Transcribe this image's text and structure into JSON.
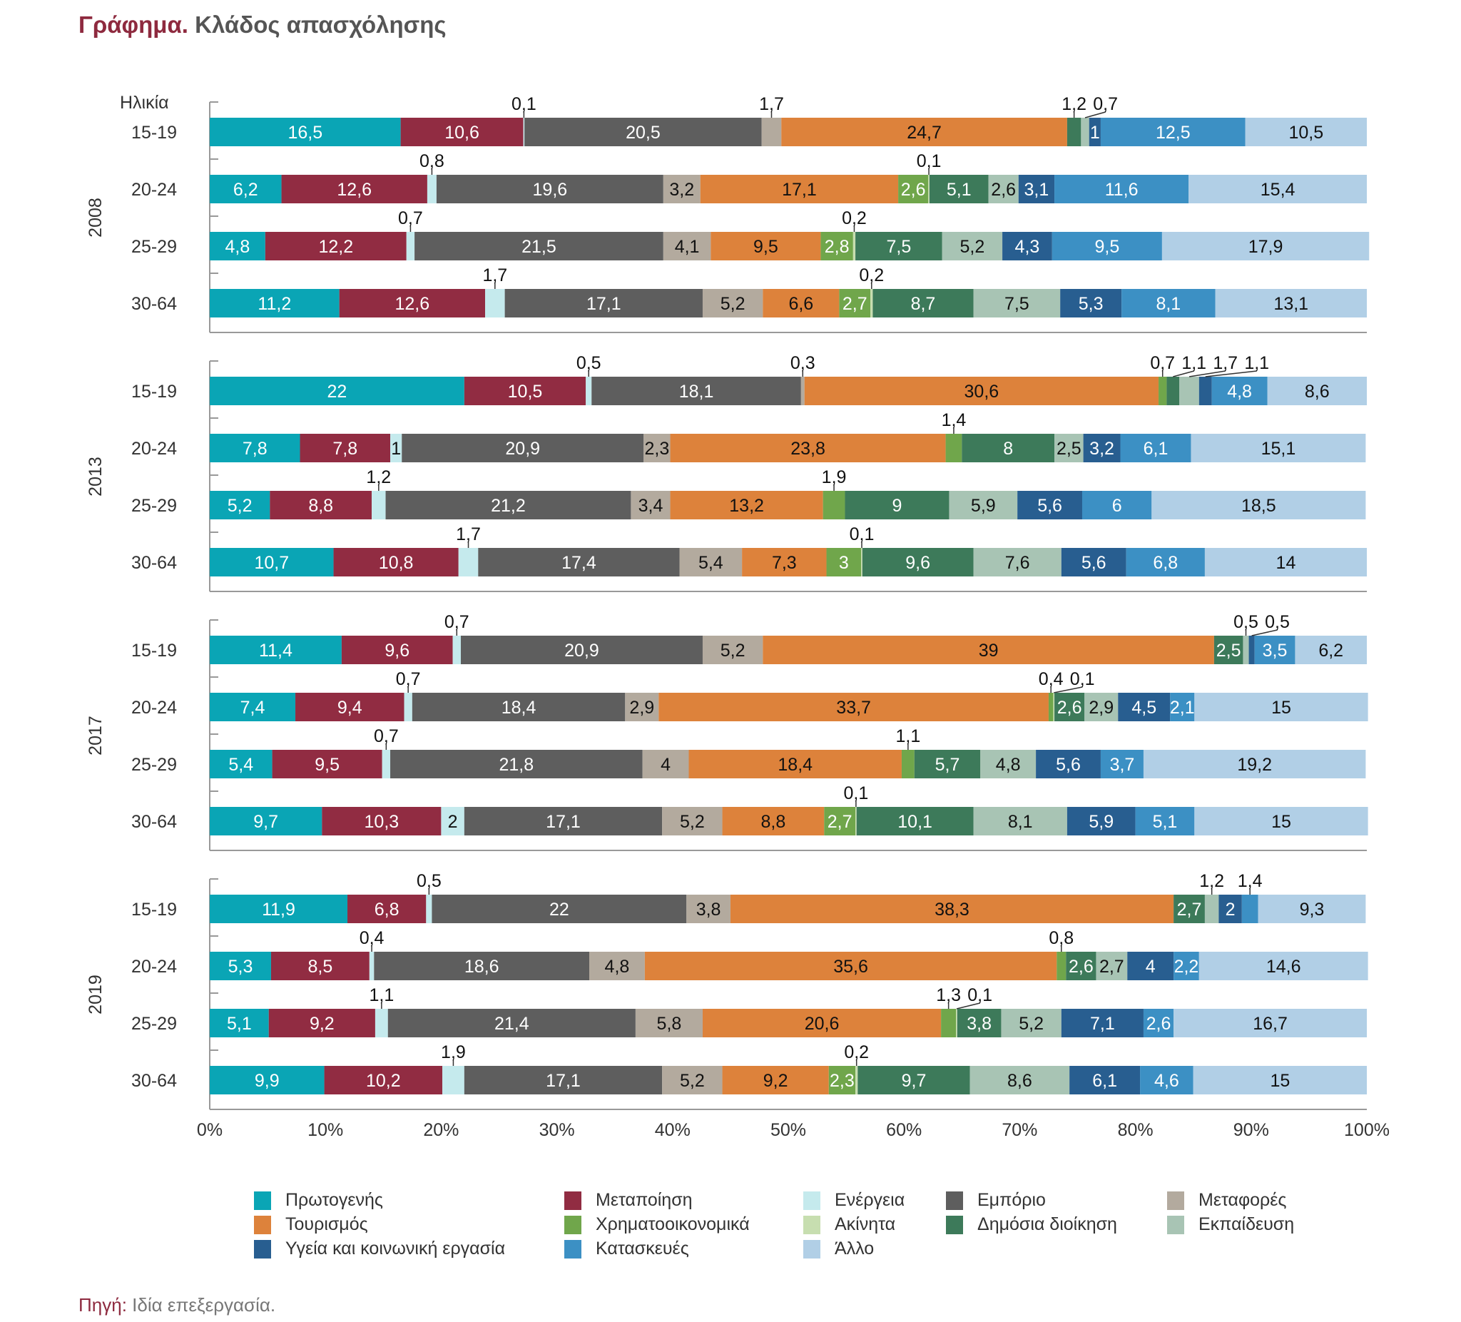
{
  "title": {
    "lead": "Γράφημα.",
    "text": "Κλάδος απασχόλησης"
  },
  "source": {
    "lead": "Πηγή:",
    "text": "Ιδία επεξεργασία."
  },
  "chart_data": {
    "type": "bar",
    "orientation": "horizontal",
    "stacked": "percent",
    "age_label": "Ηλικία",
    "xlim": [
      0,
      100
    ],
    "x_ticks": [
      "0%",
      "10%",
      "20%",
      "30%",
      "40%",
      "50%",
      "60%",
      "70%",
      "80%",
      "90%",
      "100%"
    ],
    "legend_position": "bottom",
    "series": [
      {
        "name": "Πρωτογενής",
        "color": "#0aa5b5"
      },
      {
        "name": "Μεταποίηση",
        "color": "#912c42"
      },
      {
        "name": "Ενέργεια",
        "color": "#c5eaed"
      },
      {
        "name": "Εμπόριο",
        "color": "#5e5e5e"
      },
      {
        "name": "Μεταφορές",
        "color": "#b3aa9e"
      },
      {
        "name": "Τουρισμός",
        "color": "#dd823b"
      },
      {
        "name": "Χρηματοοικονομικά",
        "color": "#70a64b"
      },
      {
        "name": "Ακίνητα",
        "color": "#c7deb0"
      },
      {
        "name": "Δημόσια διοίκηση",
        "color": "#3d7a5a"
      },
      {
        "name": "Εκπαίδευση",
        "color": "#a8c4b4"
      },
      {
        "name": "Υγεία και κοινωνική εργασία",
        "color": "#285e90"
      },
      {
        "name": "Κατασκευές",
        "color": "#3c90c4"
      },
      {
        "name": "Άλλο",
        "color": "#b1cfe6"
      }
    ],
    "groups": [
      {
        "year": "2008",
        "rows": [
          {
            "age": "15-19",
            "values": [
              16.5,
              10.6,
              0.1,
              20.5,
              1.7,
              24.7,
              0,
              0,
              1.2,
              0.7,
              1,
              12.5,
              10.5
            ]
          },
          {
            "age": "20-24",
            "values": [
              6.2,
              12.6,
              0.8,
              19.6,
              3.2,
              17.1,
              2.6,
              0.1,
              5.1,
              2.6,
              3.1,
              11.6,
              15.4
            ]
          },
          {
            "age": "25-29",
            "values": [
              4.8,
              12.2,
              0.7,
              21.5,
              4.1,
              9.5,
              2.8,
              0.2,
              7.5,
              5.2,
              4.3,
              9.5,
              17.9
            ]
          },
          {
            "age": "30-64",
            "values": [
              11.2,
              12.6,
              1.7,
              17.1,
              5.2,
              6.6,
              2.7,
              0.2,
              8.7,
              7.5,
              5.3,
              8.1,
              13.1
            ]
          }
        ]
      },
      {
        "year": "2013",
        "rows": [
          {
            "age": "15-19",
            "values": [
              22,
              10.5,
              0.5,
              18.1,
              0.3,
              30.6,
              0.7,
              0,
              1.1,
              1.7,
              1.1,
              4.8,
              8.6
            ]
          },
          {
            "age": "20-24",
            "values": [
              7.8,
              7.8,
              1,
              20.9,
              2.3,
              23.8,
              1.4,
              0,
              8,
              2.5,
              3.2,
              6.1,
              15.1
            ]
          },
          {
            "age": "25-29",
            "values": [
              5.2,
              8.8,
              1.2,
              21.2,
              3.4,
              13.2,
              1.9,
              0,
              9,
              5.9,
              5.6,
              6,
              18.5
            ]
          },
          {
            "age": "30-64",
            "values": [
              10.7,
              10.8,
              1.7,
              17.4,
              5.4,
              7.3,
              3,
              0.1,
              9.6,
              7.6,
              5.6,
              6.8,
              14
            ]
          }
        ]
      },
      {
        "year": "2017",
        "rows": [
          {
            "age": "15-19",
            "values": [
              11.4,
              9.6,
              0.7,
              20.9,
              5.2,
              39,
              0,
              0,
              2.5,
              0.5,
              0.5,
              3.5,
              6.2
            ]
          },
          {
            "age": "20-24",
            "values": [
              7.4,
              9.4,
              0.7,
              18.4,
              2.9,
              33.7,
              0.4,
              0.1,
              2.6,
              2.9,
              4.5,
              2.1,
              15
            ]
          },
          {
            "age": "25-29",
            "values": [
              5.4,
              9.5,
              0.7,
              21.8,
              4,
              18.4,
              1.1,
              0,
              5.7,
              4.8,
              5.6,
              3.7,
              19.2
            ]
          },
          {
            "age": "30-64",
            "values": [
              9.7,
              10.3,
              2,
              17.1,
              5.2,
              8.8,
              2.7,
              0.1,
              10.1,
              8.1,
              5.9,
              5.1,
              15
            ]
          }
        ]
      },
      {
        "year": "2019",
        "rows": [
          {
            "age": "15-19",
            "values": [
              11.9,
              6.8,
              0.5,
              22,
              3.8,
              38.3,
              0,
              0,
              2.7,
              1.2,
              2,
              1.4,
              9.3
            ]
          },
          {
            "age": "20-24",
            "values": [
              5.3,
              8.5,
              0.4,
              18.6,
              4.8,
              35.6,
              0.8,
              0,
              2.6,
              2.7,
              4,
              2.2,
              14.6
            ]
          },
          {
            "age": "25-29",
            "values": [
              5.1,
              9.2,
              1.1,
              21.4,
              5.8,
              20.6,
              1.3,
              0.1,
              3.8,
              5.2,
              7.1,
              2.6,
              16.7
            ]
          },
          {
            "age": "30-64",
            "values": [
              9.9,
              10.2,
              1.9,
              17.1,
              5.2,
              9.2,
              2.3,
              0.2,
              9.7,
              8.6,
              6.1,
              4.6,
              15
            ]
          }
        ]
      }
    ]
  }
}
